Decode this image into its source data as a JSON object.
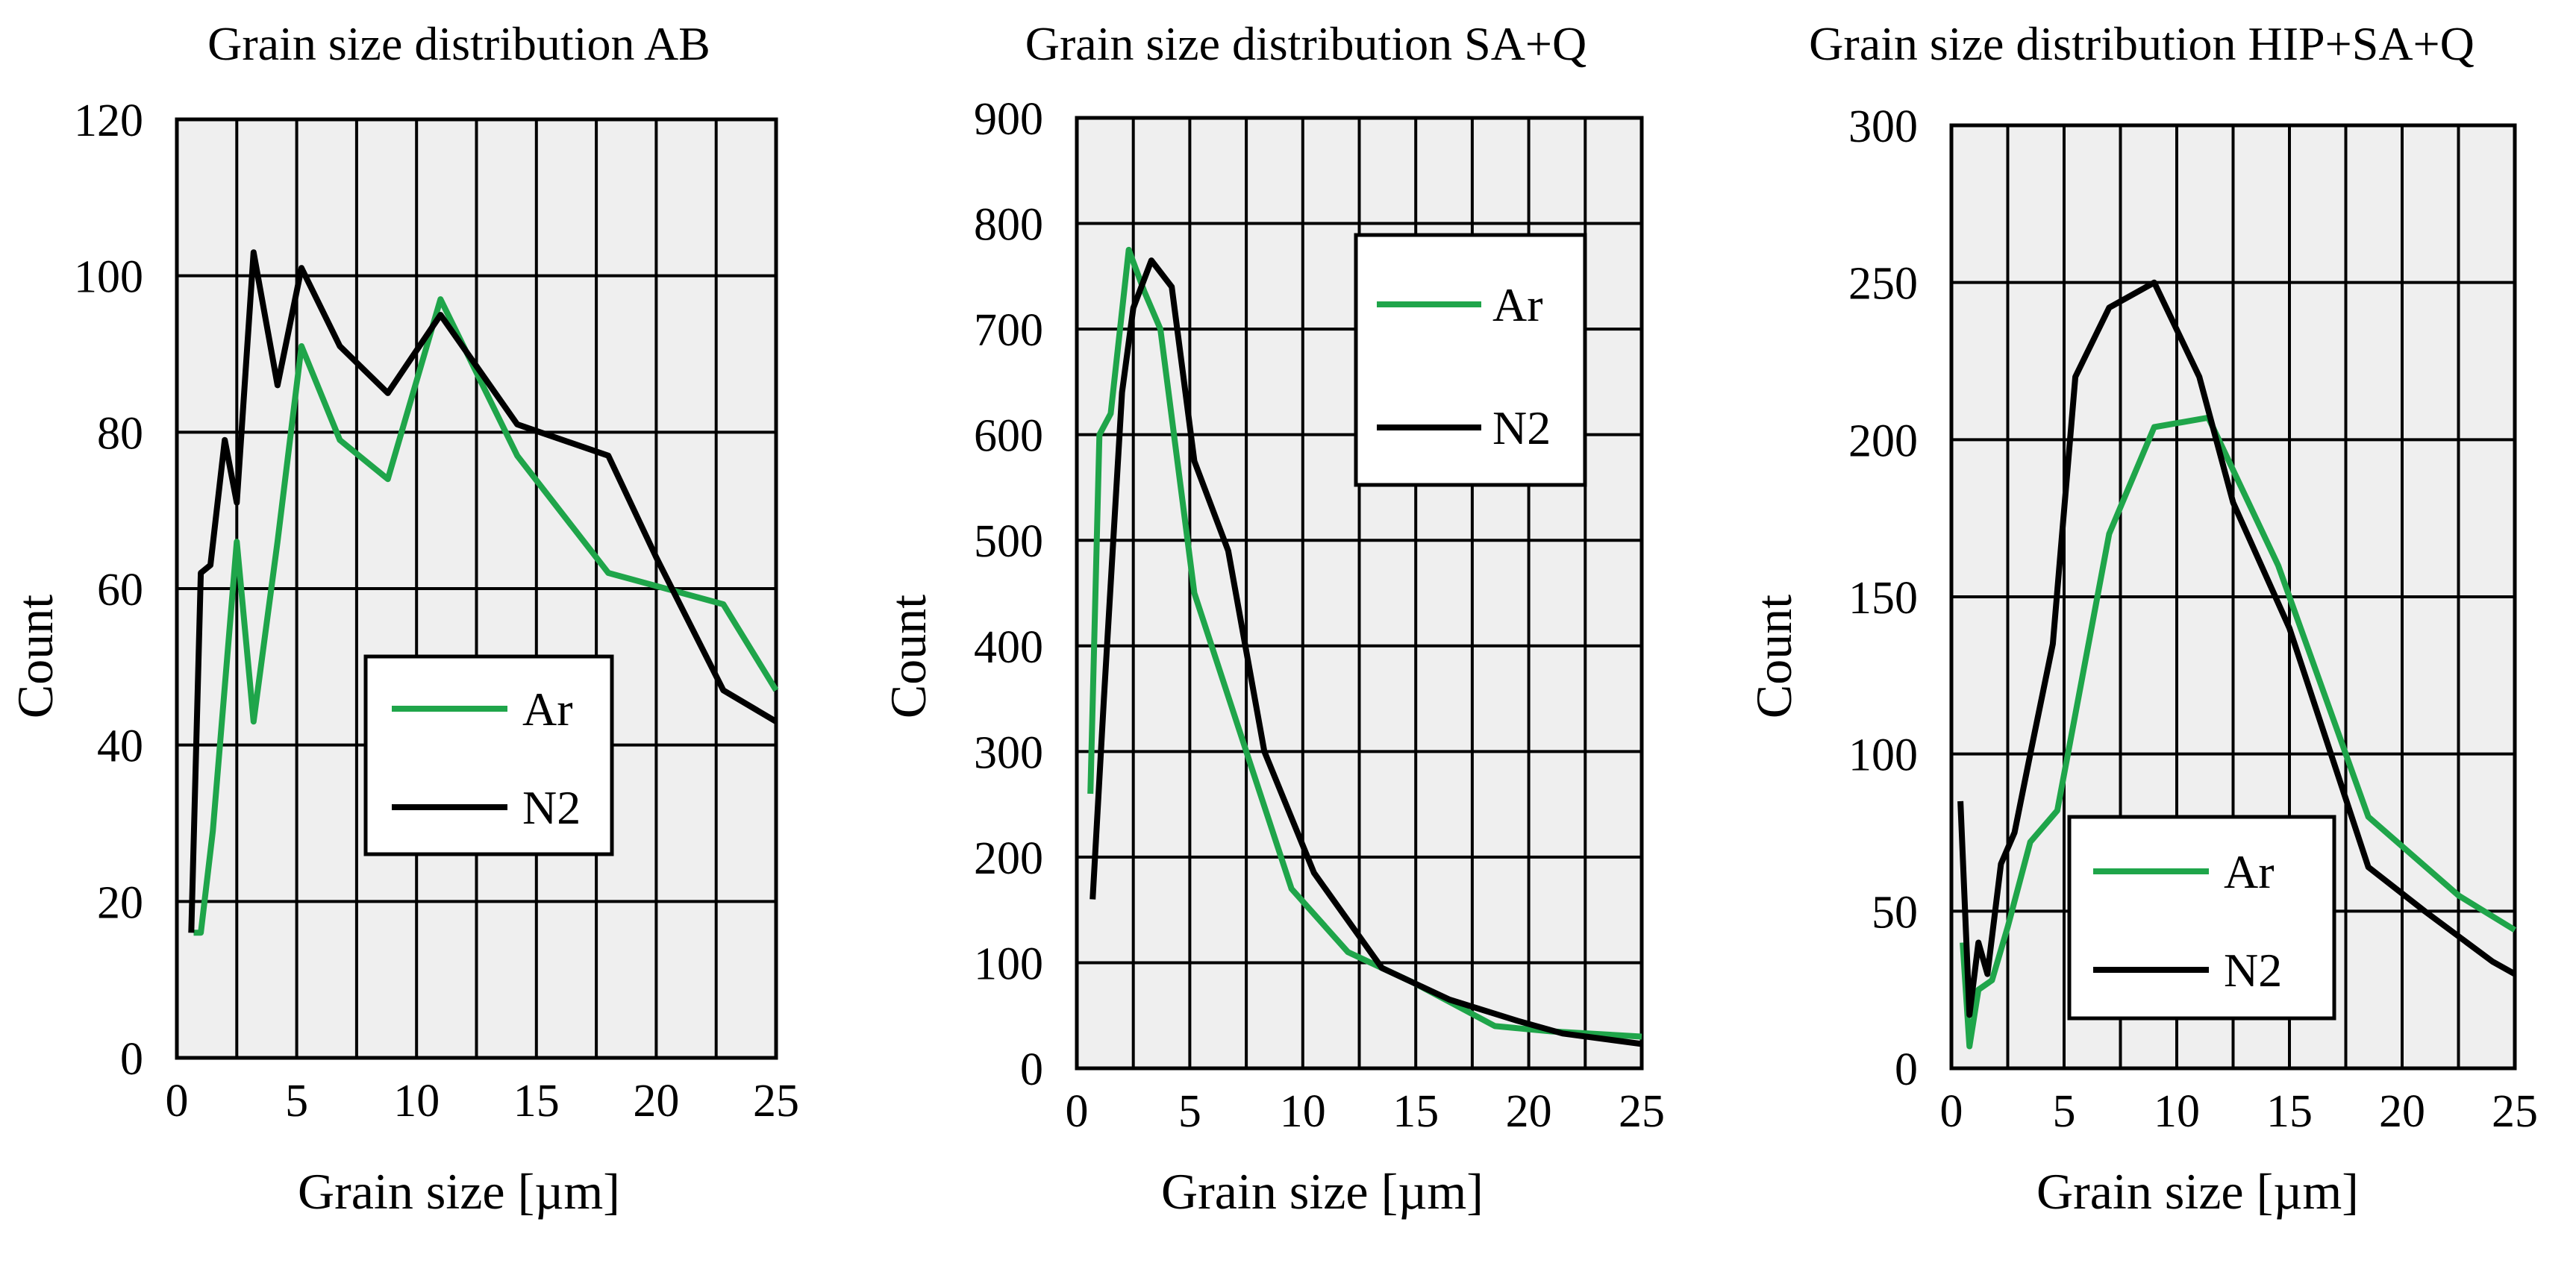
{
  "colors": {
    "ar": "#1fa54a",
    "n2": "#000000",
    "plot_bg": "#efefef",
    "grid": "#000000"
  },
  "chart_data": [
    {
      "type": "line",
      "title": "Grain size distribution AB",
      "xlabel": "Grain size [µm]",
      "ylabel": "Count",
      "xlim": [
        0,
        25
      ],
      "ylim": [
        0,
        120
      ],
      "xticks": [
        0,
        5,
        10,
        15,
        20,
        25
      ],
      "yticks": [
        0,
        20,
        40,
        60,
        80,
        100,
        120
      ],
      "legend_position": "center",
      "series": [
        {
          "name": "Ar",
          "x": [
            0.7,
            1.0,
            1.5,
            2.5,
            3.2,
            4.2,
            5.2,
            6.8,
            8.8,
            11.0,
            14.2,
            18.0,
            22.8,
            25.0
          ],
          "y": [
            16,
            16,
            29,
            66,
            43,
            66,
            91,
            79,
            74,
            97,
            77,
            62,
            58,
            47
          ]
        },
        {
          "name": "N2",
          "x": [
            0.6,
            1.0,
            1.4,
            2.0,
            2.5,
            3.2,
            4.2,
            5.2,
            6.8,
            8.8,
            11.0,
            14.2,
            18.0,
            20.0,
            22.8,
            25.0
          ],
          "y": [
            16,
            62,
            63,
            79,
            71,
            103,
            86,
            101,
            91,
            85,
            95,
            81,
            77,
            64,
            47,
            43
          ]
        }
      ]
    },
    {
      "type": "line",
      "title": "Grain size distribution SA+Q",
      "xlabel": "Grain size [µm]",
      "ylabel": "Count",
      "xlim": [
        0,
        25
      ],
      "ylim": [
        0,
        900
      ],
      "xticks": [
        0,
        5,
        10,
        15,
        20,
        25
      ],
      "yticks": [
        0,
        100,
        200,
        300,
        400,
        500,
        600,
        700,
        800,
        900
      ],
      "legend_position": "top-right",
      "series": [
        {
          "name": "Ar",
          "x": [
            0.6,
            1.0,
            1.5,
            2.3,
            3.0,
            3.7,
            5.2,
            7.5,
            9.5,
            12.0,
            15.0,
            18.5,
            21.0,
            25.0
          ],
          "y": [
            260,
            600,
            620,
            775,
            735,
            700,
            450,
            300,
            170,
            110,
            80,
            40,
            35,
            30
          ]
        },
        {
          "name": "N2",
          "x": [
            0.7,
            1.2,
            2.0,
            2.5,
            3.3,
            4.2,
            5.2,
            6.7,
            8.3,
            10.5,
            13.5,
            16.5,
            19.5,
            21.5,
            25.0
          ],
          "y": [
            160,
            350,
            640,
            720,
            765,
            740,
            575,
            490,
            300,
            185,
            95,
            65,
            45,
            33,
            23
          ]
        }
      ]
    },
    {
      "type": "line",
      "title": "Grain size distribution HIP+SA+Q",
      "xlabel": "Grain size [µm]",
      "ylabel": "Count",
      "xlim": [
        0,
        25
      ],
      "ylim": [
        0,
        300
      ],
      "xticks": [
        0,
        5,
        10,
        15,
        20,
        25
      ],
      "yticks": [
        0,
        50,
        100,
        150,
        200,
        250,
        300
      ],
      "legend_position": "bottom-center",
      "series": [
        {
          "name": "Ar",
          "x": [
            0.5,
            0.8,
            1.2,
            1.8,
            2.5,
            3.5,
            4.7,
            7.0,
            9.0,
            11.4,
            14.5,
            18.5,
            22.5,
            25.0
          ],
          "y": [
            40,
            7,
            25,
            28,
            45,
            72,
            82,
            170,
            204,
            207,
            160,
            80,
            55,
            44
          ]
        },
        {
          "name": "N2",
          "x": [
            0.4,
            0.8,
            1.2,
            1.6,
            2.2,
            2.8,
            3.5,
            4.5,
            5.5,
            7.0,
            9.0,
            11.0,
            12.5,
            15.0,
            18.5,
            21.0,
            24.0,
            25.0
          ],
          "y": [
            85,
            17,
            40,
            30,
            65,
            75,
            100,
            135,
            220,
            242,
            250,
            220,
            180,
            140,
            64,
            50,
            34,
            30
          ]
        }
      ]
    }
  ]
}
